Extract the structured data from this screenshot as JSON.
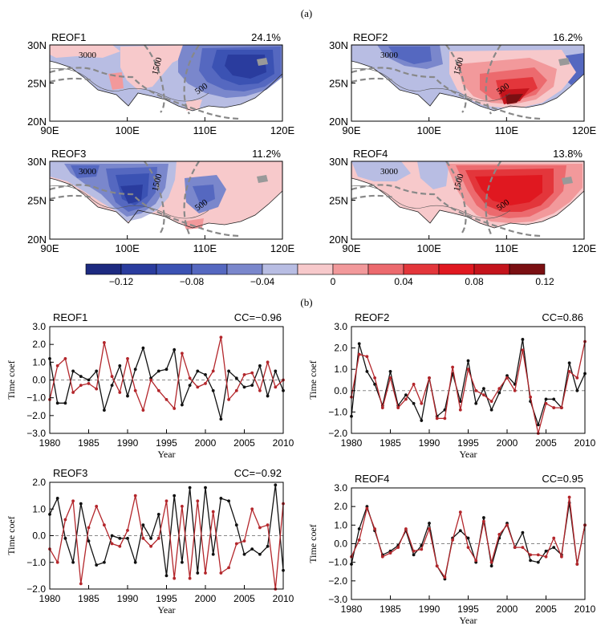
{
  "figure": {
    "part_a_label": "(a)",
    "part_b_label": "(b)"
  },
  "colorbar": {
    "colors": [
      "#1d2a80",
      "#2a3c9e",
      "#3b52b3",
      "#5568c0",
      "#7a87cc",
      "#b8bde3",
      "#f7c9cb",
      "#f2999b",
      "#ec6a6e",
      "#e3363b",
      "#e01820",
      "#c4141c",
      "#7a0f12"
    ],
    "tick_labels": [
      "−0.12",
      "−0.08",
      "−0.04",
      "0",
      "0.04",
      "0.08",
      "0.12"
    ]
  },
  "maps": {
    "lat_ticks": [
      "30N",
      "25N",
      "20N"
    ],
    "lon_ticks": [
      "90E",
      "100E",
      "110E",
      "120E"
    ],
    "contour_labels": [
      "3000",
      "1500",
      "500"
    ],
    "panels": [
      {
        "title": "REOF1",
        "variance": "24.1%"
      },
      {
        "title": "REOF2",
        "variance": "16.2%"
      },
      {
        "title": "REOF3",
        "variance": "11.2%"
      },
      {
        "title": "REOF4",
        "variance": "13.8%"
      }
    ]
  },
  "chart_data": [
    {
      "type": "line",
      "title": "REOF1",
      "cc": "CC=−0.96",
      "xlabel": "Year",
      "ylabel": "Time coef",
      "xlim": [
        1980,
        2010
      ],
      "ylim": [
        -3.0,
        3.0
      ],
      "x_ticks": [
        1980,
        1985,
        1990,
        1995,
        2000,
        2005,
        2010
      ],
      "y_ticks": [
        3.0,
        2.0,
        1.0,
        0.0,
        -1.0,
        -2.0,
        -3.0
      ],
      "y_tick_labels": [
        "3.0",
        "2.0",
        "1.0",
        "0.0",
        "−1.0",
        "−2.0",
        "−3.0"
      ],
      "x": [
        1980,
        1981,
        1982,
        1983,
        1984,
        1985,
        1986,
        1987,
        1988,
        1989,
        1990,
        1991,
        1992,
        1993,
        1994,
        1995,
        1996,
        1997,
        1998,
        1999,
        2000,
        2001,
        2002,
        2003,
        2004,
        2005,
        2006,
        2007,
        2008,
        2009,
        2010
      ],
      "series": [
        {
          "color": "#111111",
          "values": [
            1.2,
            -1.3,
            -1.3,
            0.5,
            0.2,
            0.0,
            0.5,
            -1.7,
            -0.3,
            0.8,
            -0.9,
            0.6,
            1.8,
            0.1,
            0.5,
            0.6,
            1.7,
            -1.4,
            -0.3,
            0.5,
            0.3,
            -0.6,
            -2.2,
            0.5,
            0.1,
            -0.4,
            -0.3,
            0.8,
            -0.9,
            0.5,
            -0.6
          ]
        },
        {
          "color": "#b3262b",
          "values": [
            -1.1,
            0.8,
            1.2,
            -0.7,
            -0.3,
            -0.2,
            -0.5,
            2.1,
            0.2,
            -0.7,
            1.2,
            -0.6,
            -1.7,
            0.0,
            -0.6,
            -1.1,
            -1.6,
            1.5,
            0.1,
            -0.4,
            -0.2,
            0.5,
            2.4,
            -1.1,
            -0.6,
            0.3,
            0.4,
            -0.6,
            1.0,
            -0.4,
            0.0
          ]
        }
      ]
    },
    {
      "type": "line",
      "title": "REOF2",
      "cc": "CC=0.86",
      "xlabel": "Year",
      "ylabel": "Time coef",
      "xlim": [
        1980,
        2010
      ],
      "ylim": [
        -2.0,
        3.0
      ],
      "x_ticks": [
        1980,
        1985,
        1990,
        1995,
        2000,
        2005,
        2010
      ],
      "y_ticks": [
        3.0,
        2.0,
        1.0,
        0.0,
        -1.0,
        -2.0
      ],
      "y_tick_labels": [
        "3.0",
        "2.0",
        "1.0",
        "0.0",
        "−1.0",
        "−2.0"
      ],
      "x": [
        1980,
        1981,
        1982,
        1983,
        1984,
        1985,
        1986,
        1987,
        1988,
        1989,
        1990,
        1991,
        1992,
        1993,
        1994,
        1995,
        1996,
        1997,
        1998,
        1999,
        2000,
        2001,
        2002,
        2003,
        2004,
        2005,
        2006,
        2007,
        2008,
        2009,
        2010
      ],
      "series": [
        {
          "color": "#111111",
          "values": [
            -1.2,
            2.2,
            0.9,
            0.3,
            -0.7,
            0.9,
            -0.7,
            -0.2,
            -0.6,
            -1.4,
            0.6,
            -1.2,
            -0.9,
            0.8,
            -0.5,
            1.4,
            -0.6,
            0.1,
            -0.9,
            -0.1,
            0.7,
            0.3,
            2.4,
            -0.5,
            -1.6,
            -0.4,
            -0.4,
            -0.8,
            1.3,
            0.0,
            0.8
          ]
        },
        {
          "color": "#b3262b",
          "values": [
            -0.3,
            1.7,
            1.6,
            0.6,
            -0.8,
            0.6,
            -0.8,
            -0.4,
            0.3,
            -0.6,
            0.6,
            -1.3,
            -1.3,
            1.1,
            -0.9,
            1.0,
            0.0,
            -0.2,
            -0.5,
            0.1,
            0.6,
            0.0,
            1.9,
            -0.3,
            -2.0,
            -0.6,
            -0.8,
            -0.8,
            0.9,
            0.6,
            2.3
          ]
        }
      ]
    },
    {
      "type": "line",
      "title": "REOF3",
      "cc": "CC=−0.92",
      "xlabel": "Year",
      "ylabel": "Time coef",
      "xlim": [
        1980,
        2010
      ],
      "ylim": [
        -2.0,
        2.0
      ],
      "x_ticks": [
        1980,
        1985,
        1990,
        1995,
        2000,
        2005,
        2010
      ],
      "y_ticks": [
        2.0,
        1.0,
        0.0,
        -1.0,
        -2.0
      ],
      "y_tick_labels": [
        "2.0",
        "1.0",
        "0.0",
        "−1.0",
        "−2.0"
      ],
      "x": [
        1980,
        1981,
        1982,
        1983,
        1984,
        1985,
        1986,
        1987,
        1988,
        1989,
        1990,
        1991,
        1992,
        1993,
        1994,
        1995,
        1996,
        1997,
        1998,
        1999,
        2000,
        2001,
        2002,
        2003,
        2004,
        2005,
        2006,
        2007,
        2008,
        2009,
        2010
      ],
      "series": [
        {
          "color": "#111111",
          "values": [
            0.8,
            1.4,
            -0.1,
            -1.0,
            1.2,
            -0.2,
            -1.1,
            -1.0,
            0.0,
            -0.1,
            -0.1,
            -1.0,
            0.4,
            -0.1,
            0.8,
            -1.5,
            1.5,
            -1.0,
            1.8,
            -1.4,
            1.8,
            -0.7,
            1.4,
            1.3,
            0.4,
            -0.7,
            -0.5,
            -0.7,
            -0.4,
            1.9,
            -1.3
          ]
        },
        {
          "color": "#b3262b",
          "values": [
            -0.5,
            -1.0,
            0.6,
            1.3,
            -1.8,
            0.3,
            1.1,
            0.4,
            -0.3,
            -0.4,
            0.2,
            1.5,
            -0.1,
            -0.4,
            -0.1,
            1.3,
            -1.6,
            1.1,
            -1.6,
            1.3,
            -1.4,
            0.9,
            -1.4,
            -1.2,
            -0.3,
            -0.2,
            1.0,
            0.3,
            0.4,
            -2.0,
            1.2
          ]
        }
      ]
    },
    {
      "type": "line",
      "title": "REOF4",
      "cc": "CC=0.95",
      "xlabel": "Year",
      "ylabel": "Time coef",
      "xlim": [
        1980,
        2010
      ],
      "ylim": [
        -3.0,
        3.0
      ],
      "x_ticks": [
        1980,
        1985,
        1990,
        1995,
        2000,
        2005,
        2010
      ],
      "y_ticks": [
        3.0,
        2.0,
        1.0,
        0.0,
        -1.0,
        -2.0,
        -3.0
      ],
      "y_tick_labels": [
        "3.0",
        "2.0",
        "1.0",
        "0.0",
        "−1.0",
        "−2.0",
        "−3.0"
      ],
      "x": [
        1980,
        1981,
        1982,
        1983,
        1984,
        1985,
        1986,
        1987,
        1988,
        1989,
        1990,
        1991,
        1992,
        1993,
        1994,
        1995,
        1996,
        1997,
        1998,
        1999,
        2000,
        2001,
        2002,
        2003,
        2004,
        2005,
        2006,
        2007,
        2008,
        2009,
        2010
      ],
      "series": [
        {
          "color": "#111111",
          "values": [
            -1.1,
            0.8,
            2.0,
            0.7,
            -0.6,
            -0.4,
            -0.1,
            0.7,
            -0.6,
            -0.1,
            1.1,
            -1.2,
            -1.9,
            0.3,
            0.7,
            0.3,
            -1.0,
            1.4,
            -1.2,
            0.3,
            1.1,
            -0.2,
            0.6,
            -0.9,
            -1.0,
            -0.4,
            -0.2,
            -0.6,
            2.2,
            -1.1,
            1.0
          ]
        },
        {
          "color": "#b3262b",
          "values": [
            -0.7,
            0.2,
            1.9,
            0.8,
            -0.7,
            -0.5,
            -0.2,
            0.8,
            -0.4,
            -0.3,
            0.8,
            -1.2,
            -1.8,
            0.2,
            1.7,
            -0.2,
            -0.9,
            1.2,
            -1.0,
            0.5,
            1.0,
            -0.2,
            -0.2,
            -0.6,
            -0.6,
            -0.7,
            0.3,
            -0.7,
            2.5,
            -1.1,
            1.0
          ]
        }
      ]
    }
  ]
}
